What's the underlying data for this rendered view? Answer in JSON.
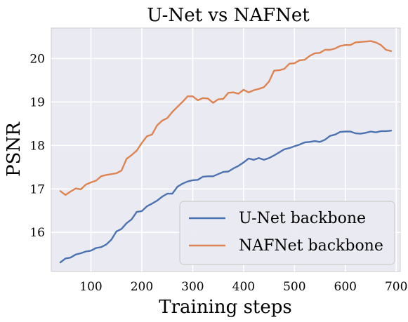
{
  "chart_data": {
    "type": "line",
    "title": "U-Net vs NAFNet",
    "xlabel": "Training steps",
    "ylabel": "PSNR",
    "xlim": [
      22,
      708
    ],
    "ylim": [
      15.1,
      20.7
    ],
    "xticks": [
      100,
      200,
      300,
      400,
      500,
      600,
      700
    ],
    "yticks": [
      16,
      17,
      18,
      19,
      20
    ],
    "grid": true,
    "legend_position": "lower-right",
    "x": [
      40,
      50,
      60,
      70,
      80,
      90,
      100,
      110,
      120,
      130,
      140,
      150,
      160,
      170,
      180,
      190,
      200,
      210,
      220,
      230,
      240,
      250,
      260,
      270,
      280,
      290,
      300,
      310,
      320,
      330,
      340,
      350,
      360,
      370,
      380,
      390,
      400,
      410,
      420,
      430,
      440,
      450,
      460,
      470,
      480,
      490,
      500,
      510,
      520,
      530,
      540,
      550,
      560,
      570,
      580,
      590,
      600,
      610,
      620,
      630,
      640,
      650,
      660,
      670,
      680,
      690
    ],
    "series": [
      {
        "name": "U-Net backbone",
        "color": "#4c72b0",
        "values": [
          15.31,
          15.4,
          15.42,
          15.49,
          15.52,
          15.56,
          15.58,
          15.64,
          15.66,
          15.72,
          15.83,
          16.02,
          16.08,
          16.21,
          16.3,
          16.47,
          16.49,
          16.6,
          16.66,
          16.73,
          16.82,
          16.89,
          16.89,
          17.05,
          17.12,
          17.17,
          17.2,
          17.21,
          17.28,
          17.29,
          17.29,
          17.34,
          17.39,
          17.4,
          17.47,
          17.53,
          17.61,
          17.7,
          17.67,
          17.71,
          17.67,
          17.71,
          17.77,
          17.84,
          17.91,
          17.94,
          17.98,
          18.02,
          18.07,
          18.08,
          18.1,
          18.08,
          18.13,
          18.22,
          18.25,
          18.31,
          18.32,
          18.32,
          18.28,
          18.27,
          18.29,
          18.32,
          18.3,
          18.33,
          18.33,
          18.34
        ]
      },
      {
        "name": "NAFNet backbone",
        "color": "#dd8452",
        "values": [
          16.95,
          16.86,
          16.94,
          17.01,
          16.99,
          17.1,
          17.15,
          17.19,
          17.29,
          17.32,
          17.34,
          17.36,
          17.42,
          17.69,
          17.78,
          17.88,
          18.06,
          18.21,
          18.25,
          18.46,
          18.57,
          18.63,
          18.77,
          18.89,
          19.0,
          19.13,
          19.13,
          19.04,
          19.09,
          19.08,
          18.98,
          19.06,
          19.07,
          19.21,
          19.22,
          19.19,
          19.28,
          19.22,
          19.27,
          19.3,
          19.34,
          19.47,
          19.72,
          19.73,
          19.76,
          19.88,
          19.89,
          19.96,
          19.97,
          20.06,
          20.12,
          20.13,
          20.2,
          20.2,
          20.23,
          20.29,
          20.31,
          20.31,
          20.37,
          20.38,
          20.39,
          20.4,
          20.37,
          20.31,
          20.2,
          20.17
        ]
      }
    ]
  }
}
